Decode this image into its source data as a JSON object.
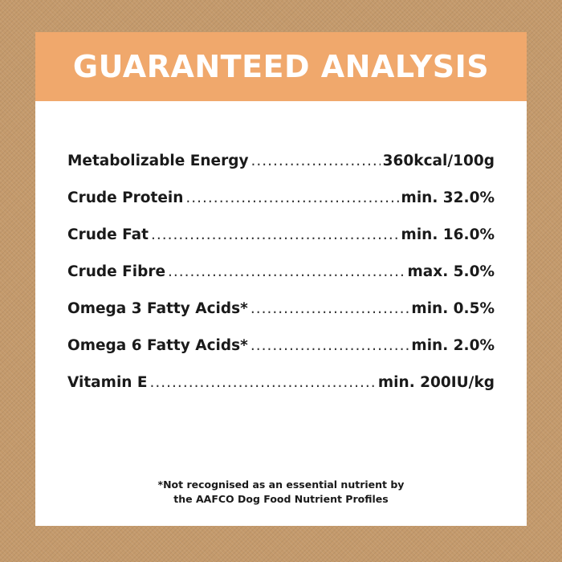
{
  "header": {
    "title": "GUARANTEED ANALYSIS"
  },
  "analysis": {
    "rows": [
      {
        "label": "Metabolizable Energy",
        "value": "360kcal/100g"
      },
      {
        "label": "Crude Protein",
        "value": "min. 32.0%"
      },
      {
        "label": "Crude Fat",
        "value": "min. 16.0%"
      },
      {
        "label": "Crude Fibre",
        "value": "max. 5.0%"
      },
      {
        "label": "Omega 3 Fatty Acids*",
        "value": "min. 0.5%"
      },
      {
        "label": "Omega 6 Fatty Acids*",
        "value": "min. 2.0%"
      },
      {
        "label": "Vitamin E",
        "value": "min. 200IU/kg"
      }
    ]
  },
  "footnote": {
    "line1": "*Not recognised as an essential nutrient by",
    "line2": "the AAFCO Dog Food Nutrient Profiles"
  },
  "colors": {
    "background": "#c49a6c",
    "header_band": "#f0a86c",
    "panel": "#ffffff",
    "text": "#1a1a1a"
  }
}
